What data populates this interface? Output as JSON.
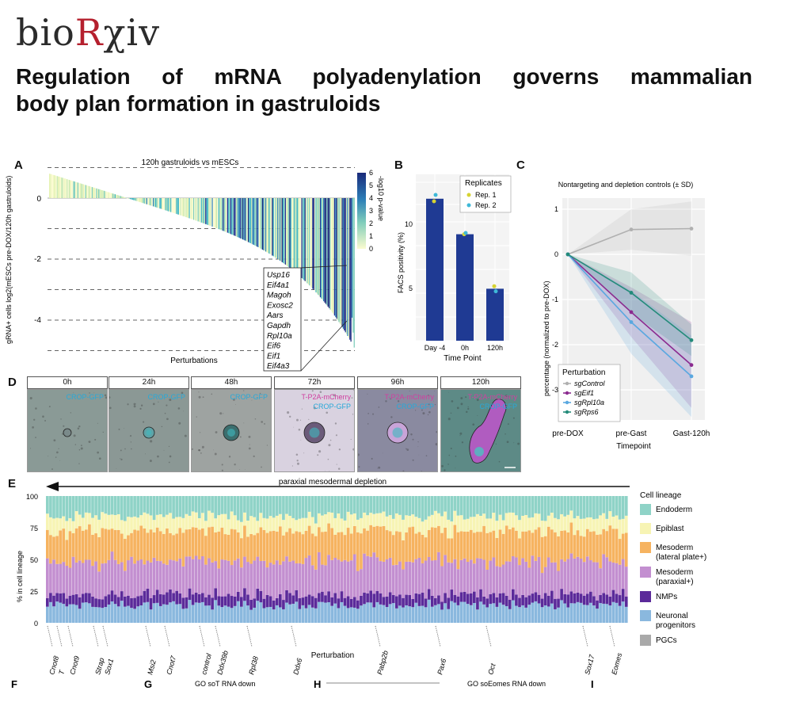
{
  "logo": {
    "prefix": "bio",
    "accent": "R",
    "suffix": "χiv"
  },
  "title": {
    "line1": "Regulation of mRNA polyadenylation governs mammalian",
    "line2": "body plan formation in gastruloids"
  },
  "panelA": {
    "label": "A",
    "plot_title": "120h gastruloids vs mESCs",
    "ylabel": "gRNA+ cells log2(mESCs pre-DOX/120h gastruloids)",
    "xlabel": "Perturbations",
    "yticks": [
      "0",
      "-2",
      "-4"
    ],
    "colorbar_title": "-log10 p-value",
    "colorbar_ticks": [
      "6",
      "5",
      "4",
      "3",
      "2",
      "1",
      "0"
    ],
    "callout_genes": [
      "Usp16",
      "Eif4a1",
      "Magoh",
      "Exosc2",
      "Aars",
      "Gapdh",
      "Rpl10a",
      "Eif6",
      "Eif1",
      "Eif4a3"
    ]
  },
  "panelB": {
    "label": "B",
    "ylabel": "FACS positivity (%)",
    "xlabel": "Time Point",
    "legend_title": "Replicates",
    "legend": [
      "Rep. 1",
      "Rep. 2"
    ],
    "yticks": [
      "5",
      "10"
    ]
  },
  "panelC": {
    "label": "C",
    "plot_title": "Nontargeting and depletion controls (± SD)",
    "ylabel": "percentage (normalized to pre-DOX)",
    "xlabel": "Timepoint",
    "legend_title": "Perturbation",
    "yticks": [
      "1",
      "0",
      "-1",
      "-2",
      "-3"
    ]
  },
  "panelD": {
    "label": "D",
    "frames": [
      {
        "time": "0h",
        "marker1": "CROP-GFP",
        "marker2": ""
      },
      {
        "time": "24h",
        "marker1": "CROP-GFP",
        "marker2": ""
      },
      {
        "time": "48h",
        "marker1": "CROP-GFP",
        "marker2": ""
      },
      {
        "time": "72h",
        "marker1": "T-P2A-mCherry",
        "marker2": "CROP-GFP"
      },
      {
        "time": "96h",
        "marker1": "T-P2A-mCherry",
        "marker2": "CROP-GFP"
      },
      {
        "time": "120h",
        "marker1": "T-P2A-mCherry",
        "marker2": "CROP-GFP"
      }
    ]
  },
  "panelE": {
    "label": "E",
    "arrow_label": "paraxial mesodermal depletion",
    "ylabel": "% in cell lineage",
    "xlabel": "Perturbation",
    "yticks": [
      "100",
      "75",
      "50",
      "25",
      "0"
    ],
    "legend_title": "Cell lineage",
    "legend": [
      {
        "name": "Endoderm",
        "color": "#8fd3c7"
      },
      {
        "name": "Epiblast",
        "color": "#f7f4b4"
      },
      {
        "name": "Mesoderm (lateral plate+)",
        "color": "#f6b360"
      },
      {
        "name": "Mesoderm (paraxial+)",
        "color": "#c38fd0"
      },
      {
        "name": "NMPs",
        "color": "#5b2a9a"
      },
      {
        "name": "Neuronal progenitors",
        "color": "#8ab8de"
      },
      {
        "name": "PGCs",
        "color": "#a9a9a9"
      }
    ],
    "genes": [
      "Cnot8",
      "T",
      "Cnot9",
      "Strap",
      "Sox1",
      "Msi2",
      "Cnot7",
      "control",
      "Ddx39b",
      "Rpl38",
      "Ddx6",
      "Pabp2b",
      "Pax6",
      "Oct",
      "Sox17",
      "Eomes"
    ]
  },
  "bottom_cut": {
    "F": "F",
    "G": "G",
    "H": "H",
    "g_text": "GO soT RNA down",
    "h_text": "GO soEomes RNA down"
  },
  "chart_data": [
    {
      "type": "bar",
      "title": "120h gastruloids vs mESCs",
      "xlabel": "Perturbations",
      "ylabel": "gRNA+ cells log2(mESCs pre-DOX/120h gastruloids)",
      "ylim": [
        -5,
        1
      ],
      "note_values": "sorted descending from ~0.8 to ~-4.9 across ~280 perturbations",
      "values_start": 0.8,
      "values_end": -4.9,
      "n": 280,
      "reference_lines": [
        1,
        0,
        -1,
        -2,
        -3,
        -4,
        -5
      ]
    },
    {
      "type": "bar",
      "xlabel": "Time Point",
      "ylabel": "FACS positivity (%)",
      "categories": [
        "Day -4",
        "0h",
        "120h"
      ],
      "values": [
        11.2,
        8.4,
        4.1
      ],
      "series": [
        {
          "name": "Rep. 1",
          "values": [
            11.0,
            8.4,
            4.3
          ]
        },
        {
          "name": "Rep. 2",
          "values": [
            11.5,
            8.5,
            3.9
          ]
        }
      ],
      "ylim": [
        0,
        13
      ]
    },
    {
      "type": "line",
      "title": "Nontargeting and depletion controls (± SD)",
      "xlabel": "Timepoint",
      "ylabel": "percentage (normalized to pre-DOX)",
      "categories": [
        "pre-DOX",
        "pre-Gast",
        "Gast-120h"
      ],
      "ylim": [
        -3.6,
        1.2
      ],
      "series": [
        {
          "name": "sgControl",
          "values": [
            0,
            0.55,
            0.57
          ],
          "color": "#b0b0b0"
        },
        {
          "name": "sgEif1",
          "values": [
            0,
            -1.28,
            -2.45
          ],
          "color": "#8b2a8f"
        },
        {
          "name": "sgRpl10a",
          "values": [
            0,
            -1.5,
            -2.7
          ],
          "color": "#5aa8e0"
        },
        {
          "name": "sgRps6",
          "values": [
            0,
            -0.85,
            -1.9
          ],
          "color": "#238b7a"
        }
      ]
    },
    {
      "type": "bar",
      "stacked": true,
      "xlabel": "Perturbation",
      "ylabel": "% in cell lineage",
      "ylim": [
        0,
        100
      ],
      "n": 180,
      "mean_composition": {
        "Neuronal progenitors": 14,
        "NMPs": 8,
        "Mesoderm (paraxial+)": 26,
        "Mesoderm (lateral plate+)": 24,
        "Epiblast": 12,
        "Endoderm": 16
      }
    }
  ]
}
